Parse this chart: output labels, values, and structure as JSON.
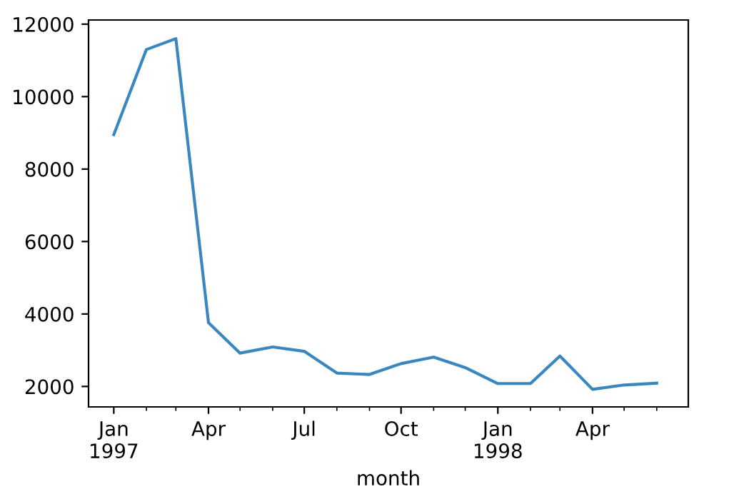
{
  "chart_data": {
    "type": "line",
    "xlabel": "month",
    "x": [
      "1997-01",
      "1997-02",
      "1997-03",
      "1997-04",
      "1997-05",
      "1997-06",
      "1997-07",
      "1997-08",
      "1997-09",
      "1997-10",
      "1997-11",
      "1997-12",
      "1998-01",
      "1998-02",
      "1998-03",
      "1998-04",
      "1998-05",
      "1998-06"
    ],
    "series": [
      {
        "color": "#3a87c0",
        "values": [
          8950,
          11300,
          11600,
          3760,
          2920,
          3090,
          2970,
          2370,
          2330,
          2630,
          2810,
          2520,
          2080,
          2080,
          2840,
          1920,
          2040,
          2090
        ]
      }
    ],
    "xlim": [
      "1996-12-08",
      "1998-07-01"
    ],
    "xticks": [
      {
        "value": "1997-01",
        "label": "Jan\n1997"
      },
      {
        "value": "1997-04",
        "label": "Apr"
      },
      {
        "value": "1997-07",
        "label": "Jul"
      },
      {
        "value": "1997-10",
        "label": "Oct"
      },
      {
        "value": "1998-01",
        "label": "Jan\n1998"
      },
      {
        "value": "1998-04",
        "label": "Apr"
      }
    ],
    "ylim": [
      1435,
      12115
    ],
    "yticks": [
      2000,
      4000,
      6000,
      8000,
      10000,
      12000
    ],
    "grid": false,
    "legend": false,
    "marker": "none",
    "line_style": "solid"
  }
}
